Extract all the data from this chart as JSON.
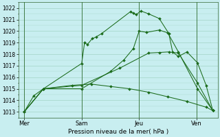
{
  "xlabel": "Pression niveau de la mer( hPa )",
  "bg_color": "#c8eef0",
  "grid_color": "#99ccbb",
  "line_color": "#1a6b1a",
  "ylim": [
    1012.5,
    1022.5
  ],
  "yticks": [
    1013,
    1014,
    1015,
    1016,
    1017,
    1018,
    1019,
    1020,
    1021,
    1022
  ],
  "xtick_labels": [
    "Mer",
    "Sam",
    "Jeu",
    "Ven"
  ],
  "xtick_positions": [
    0,
    3,
    6,
    9
  ],
  "xlim": [
    -0.3,
    10.1
  ],
  "s1_x": [
    0,
    0.5,
    1.0,
    3.0,
    3.15,
    3.3,
    3.55,
    3.75,
    4.05,
    5.55,
    5.7,
    5.85,
    6.1,
    6.5,
    7.05,
    7.55,
    7.75,
    8.05,
    8.5,
    9.05,
    9.5,
    9.85
  ],
  "s1_y": [
    1013.0,
    1014.4,
    1015.0,
    1017.2,
    1019.0,
    1018.85,
    1019.35,
    1019.5,
    1019.8,
    1021.7,
    1021.55,
    1021.45,
    1021.75,
    1021.5,
    1021.1,
    1019.8,
    1018.2,
    1017.8,
    1018.2,
    1017.25,
    1015.3,
    1013.1
  ],
  "s2_x": [
    0,
    1.0,
    3.0,
    4.5,
    5.2,
    5.7,
    6.0,
    6.4,
    7.05,
    7.5,
    8.05,
    9.05,
    9.85
  ],
  "s2_y": [
    1013.0,
    1015.0,
    1015.0,
    1016.5,
    1017.5,
    1018.5,
    1020.0,
    1019.9,
    1020.1,
    1019.85,
    1018.2,
    1015.0,
    1013.1
  ],
  "s3_x": [
    0,
    1.0,
    3.0,
    5.0,
    6.5,
    7.05,
    7.55,
    8.05,
    9.05,
    9.85
  ],
  "s3_y": [
    1013.0,
    1015.0,
    1015.3,
    1016.8,
    1018.1,
    1018.15,
    1018.2,
    1018.1,
    1015.5,
    1013.1
  ],
  "s4_x": [
    0,
    1.0,
    2.5,
    3.5,
    4.5,
    5.5,
    6.5,
    7.5,
    8.5,
    9.5,
    9.85
  ],
  "s4_y": [
    1013.0,
    1015.0,
    1015.3,
    1015.4,
    1015.2,
    1015.0,
    1014.7,
    1014.3,
    1013.9,
    1013.4,
    1013.1
  ]
}
